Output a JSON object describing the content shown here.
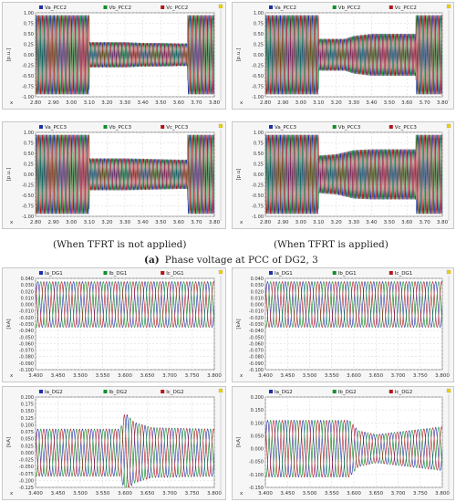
{
  "captions": {
    "left": "(When TFRT is not applied)",
    "right": "(When TFRT is applied)",
    "sub_label": "(a)",
    "sub_text": "Phase voltage at PCC of DG2, 3"
  },
  "colors": {
    "a": "#1f2fa8",
    "b": "#0f8f2a",
    "c": "#b5141b"
  },
  "chart_data": [
    {
      "id": "v_pcc2_no_tfrt",
      "type": "line",
      "x_axis_letter": "x",
      "ylabel": "[p.u.]",
      "xlim": [
        2.8,
        3.8
      ],
      "ylim": [
        -1.0,
        1.0
      ],
      "xticks": [
        "2.80",
        "2.90",
        "3.00",
        "3.10",
        "3.20",
        "3.30",
        "3.40",
        "3.50",
        "3.60",
        "3.70",
        "3.80"
      ],
      "yticks": [
        "1.00",
        "0.75",
        "0.50",
        "0.25",
        "0.00",
        "-0.25",
        "-0.50",
        "-0.75",
        "-1.00"
      ],
      "legend": [
        "Va_PCC2",
        "Vb_PCC2",
        "Vc_PCC2"
      ],
      "envelope": [
        [
          2.8,
          0.95
        ],
        [
          3.0,
          0.95
        ],
        [
          3.1,
          0.95
        ],
        [
          3.101,
          0.3
        ],
        [
          3.3,
          0.3
        ],
        [
          3.4,
          0.28
        ],
        [
          3.5,
          0.28
        ],
        [
          3.6,
          0.27
        ],
        [
          3.65,
          0.27
        ],
        [
          3.651,
          0.95
        ],
        [
          3.8,
          0.95
        ]
      ],
      "grid": true
    },
    {
      "id": "v_pcc2_tfrt",
      "type": "line",
      "x_axis_letter": "x",
      "ylabel": "[p.u.]",
      "xlim": [
        2.8,
        3.8
      ],
      "ylim": [
        -1.0,
        1.0
      ],
      "xticks": [
        "2.80",
        "2.90",
        "3.00",
        "3.10",
        "3.20",
        "3.30",
        "3.40",
        "3.50",
        "3.60",
        "3.70",
        "3.80"
      ],
      "yticks": [
        "1.00",
        "0.75",
        "0.50",
        "0.25",
        "0.00",
        "-0.25",
        "-0.50",
        "-0.75",
        "-1.00"
      ],
      "legend": [
        "Va_PCC2",
        "Vb_PCC2",
        "Vc_PCC2"
      ],
      "envelope": [
        [
          2.8,
          0.95
        ],
        [
          3.0,
          0.95
        ],
        [
          3.1,
          0.95
        ],
        [
          3.101,
          0.38
        ],
        [
          3.25,
          0.38
        ],
        [
          3.3,
          0.45
        ],
        [
          3.4,
          0.5
        ],
        [
          3.5,
          0.5
        ],
        [
          3.6,
          0.5
        ],
        [
          3.65,
          0.5
        ],
        [
          3.651,
          0.95
        ],
        [
          3.8,
          0.95
        ]
      ],
      "grid": true
    },
    {
      "id": "v_pcc3_no_tfrt",
      "type": "line",
      "x_axis_letter": "x",
      "ylabel": "[p.u.]",
      "xlim": [
        2.8,
        3.8
      ],
      "ylim": [
        -1.0,
        1.0
      ],
      "xticks": [
        "2.80",
        "2.90",
        "3.00",
        "3.10",
        "3.20",
        "3.30",
        "3.40",
        "3.50",
        "3.60",
        "3.70",
        "3.80"
      ],
      "yticks": [
        "1.00",
        "0.75",
        "0.50",
        "0.25",
        "0.00",
        "-0.25",
        "-0.50",
        "-0.75",
        "-1.00"
      ],
      "legend": [
        "Va_PCC3",
        "Vb_PCC3",
        "Vc_PCC3"
      ],
      "envelope": [
        [
          2.8,
          0.95
        ],
        [
          3.0,
          0.95
        ],
        [
          3.1,
          0.95
        ],
        [
          3.101,
          0.38
        ],
        [
          3.3,
          0.38
        ],
        [
          3.5,
          0.36
        ],
        [
          3.6,
          0.35
        ],
        [
          3.65,
          0.35
        ],
        [
          3.651,
          0.95
        ],
        [
          3.8,
          0.95
        ]
      ],
      "grid": true
    },
    {
      "id": "v_pcc3_tfrt",
      "type": "line",
      "x_axis_letter": "x",
      "ylabel": "[p.u]",
      "xlim": [
        2.8,
        3.8
      ],
      "ylim": [
        -1.0,
        1.0
      ],
      "xticks": [
        "2.80",
        "2.90",
        "3.00",
        "3.10",
        "3.20",
        "3.30",
        "3.40",
        "3.50",
        "3.60",
        "3.70",
        "3.80"
      ],
      "yticks": [
        "1.00",
        "0.75",
        "0.50",
        "0.25",
        "0.00",
        "-0.25",
        "-0.50",
        "-0.75",
        "-1.00"
      ],
      "legend": [
        "Va_PCC3",
        "Vb_PCC3",
        "Vc_PCC3"
      ],
      "envelope": [
        [
          2.8,
          0.95
        ],
        [
          3.0,
          0.95
        ],
        [
          3.1,
          0.95
        ],
        [
          3.101,
          0.45
        ],
        [
          3.2,
          0.48
        ],
        [
          3.3,
          0.58
        ],
        [
          3.4,
          0.6
        ],
        [
          3.5,
          0.6
        ],
        [
          3.6,
          0.6
        ],
        [
          3.65,
          0.6
        ],
        [
          3.651,
          0.95
        ],
        [
          3.8,
          0.95
        ]
      ],
      "grid": true
    },
    {
      "id": "i_dg1_no_tfrt",
      "type": "line",
      "x_axis_letter": "x",
      "ylabel": "[kA]",
      "xlim": [
        3.4,
        3.8
      ],
      "ylim": [
        -0.1,
        0.04
      ],
      "xticks": [
        "3.400",
        "3.450",
        "3.500",
        "3.550",
        "3.600",
        "3.650",
        "3.700",
        "3.750",
        "3.800"
      ],
      "yticks": [
        "0.040",
        "0.030",
        "0.020",
        "0.010",
        "0.000",
        "-0.010",
        "-0.020",
        "-0.030",
        "-0.040",
        "-0.050",
        "-0.060",
        "-0.070",
        "-0.080",
        "-0.090",
        "-0.100"
      ],
      "legend": [
        "Ia_DG1",
        "Ib_DG1",
        "Ic_DG1"
      ],
      "envelope": [
        [
          3.4,
          0.035
        ],
        [
          3.8,
          0.035
        ]
      ],
      "grid": true
    },
    {
      "id": "i_dg1_tfrt",
      "type": "line",
      "x_axis_letter": "x",
      "ylabel": "[kA]",
      "xlim": [
        3.4,
        3.8
      ],
      "ylim": [
        -0.1,
        0.04
      ],
      "xticks": [
        "3.400",
        "3.450",
        "3.500",
        "3.550",
        "3.600",
        "3.650",
        "3.700",
        "3.750",
        "3.800"
      ],
      "yticks": [
        "0.040",
        "0.030",
        "0.020",
        "0.010",
        "0.000",
        "-0.010",
        "-0.020",
        "-0.030",
        "-0.040",
        "-0.050",
        "-0.060",
        "-0.070",
        "-0.080",
        "-0.090",
        "-0.100"
      ],
      "legend": [
        "Ia_DG1",
        "Ib_DG1",
        "Ic_DG1"
      ],
      "envelope": [
        [
          3.4,
          0.035
        ],
        [
          3.8,
          0.035
        ]
      ],
      "grid": true
    },
    {
      "id": "i_dg2_no_tfrt",
      "type": "line",
      "x_axis_letter": "x",
      "ylabel": "[kA]",
      "xlim": [
        3.4,
        3.8
      ],
      "ylim": [
        -0.125,
        0.2
      ],
      "xticks": [
        "3.400",
        "3.450",
        "3.500",
        "3.550",
        "3.600",
        "3.650",
        "3.700",
        "3.750",
        "3.800"
      ],
      "yticks": [
        "0.200",
        "0.175",
        "0.150",
        "0.125",
        "0.100",
        "0.075",
        "0.050",
        "0.025",
        "0.000",
        "-0.025",
        "-0.050",
        "-0.075",
        "-0.100",
        "-0.125"
      ],
      "legend": [
        "Ia_DG2",
        "Ib_DG2",
        "Ic_DG2"
      ],
      "envelope": [
        [
          3.4,
          0.085
        ],
        [
          3.59,
          0.085
        ],
        [
          3.6,
          0.145
        ],
        [
          3.62,
          0.11
        ],
        [
          3.66,
          0.09
        ],
        [
          3.8,
          0.085
        ]
      ],
      "grid": true
    },
    {
      "id": "i_dg2_tfrt",
      "type": "line",
      "x_axis_letter": "x",
      "ylabel": "[kA]",
      "xlim": [
        3.4,
        3.8
      ],
      "ylim": [
        -0.15,
        0.2
      ],
      "xticks": [
        "3.400",
        "3.450",
        "3.500",
        "3.550",
        "3.600",
        "3.650",
        "3.700",
        "3.750",
        "3.800"
      ],
      "yticks": [
        "0.200",
        "0.150",
        "0.100",
        "0.050",
        "0.000",
        "-0.050",
        "-0.100",
        "-0.150"
      ],
      "legend": [
        "Ia_DG2",
        "Ib_DG2",
        "Ic_DG2"
      ],
      "envelope": [
        [
          3.4,
          0.11
        ],
        [
          3.59,
          0.11
        ],
        [
          3.61,
          0.07
        ],
        [
          3.65,
          0.055
        ],
        [
          3.7,
          0.065
        ],
        [
          3.8,
          0.085
        ]
      ],
      "grid": true
    }
  ]
}
